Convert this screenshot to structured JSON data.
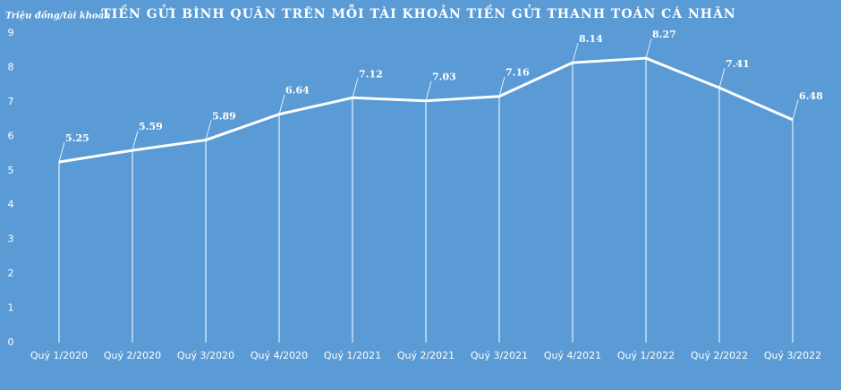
{
  "chart_data": {
    "type": "line",
    "title": "TIỀN GỬI BÌNH QUÂN TRÊN MỖI TÀI KHOẢN TIỀN GỬI THANH TOÁN CÁ NHÂN",
    "y_label": "Triệu đồng/tài khoản",
    "categories": [
      "Quý 1/2020",
      "Quý 2/2020",
      "Quý 3/2020",
      "Quý 4/2020",
      "Quý 1/2021",
      "Quý 2/2021",
      "Quý 3/2021",
      "Quý 4/2021",
      "Quý 1/2022",
      "Quý 2/2022",
      "Quý 3/2022"
    ],
    "values": [
      5.25,
      5.59,
      5.89,
      6.64,
      7.12,
      7.03,
      7.16,
      8.14,
      8.27,
      7.41,
      6.48
    ],
    "color": "#ffffff",
    "ylim": [
      0,
      9
    ],
    "yticks": [
      0,
      1,
      2,
      3,
      4,
      5,
      6,
      7,
      8,
      9
    ],
    "grid": false,
    "drop_lines": true
  }
}
